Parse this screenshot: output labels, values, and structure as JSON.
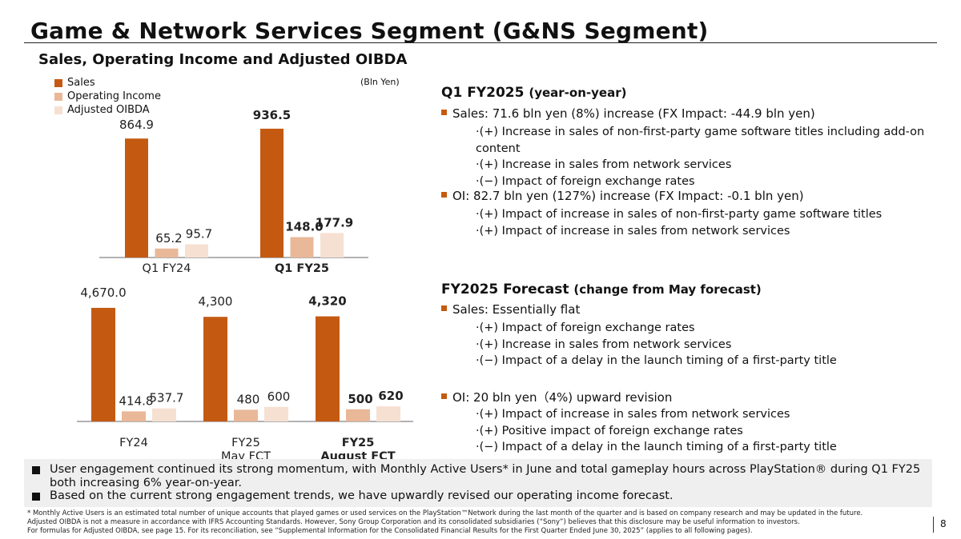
{
  "title": "Game & Network Services Segment (G&NS Segment)",
  "subtitle": "Sales, Operating Income and Adjusted OIBDA",
  "units": "(Bln Yen)",
  "legend": [
    {
      "label": "Sales",
      "color": "#c45a12"
    },
    {
      "label": "Operating Income",
      "color": "#e9b898"
    },
    {
      "label": "Adjusted OIBDA",
      "color": "#f6e0d2"
    }
  ],
  "chart_data": [
    {
      "type": "bar",
      "categories": [
        "Q1 FY24",
        "Q1 FY25"
      ],
      "category_lines": [
        [
          "Q1 FY24"
        ],
        [
          "Q1 FY25"
        ]
      ],
      "bold_categories": [
        false,
        true
      ],
      "series": [
        {
          "name": "Sales",
          "values": [
            864.9,
            936.5
          ],
          "labels": [
            "864.9",
            "936.5"
          ]
        },
        {
          "name": "Operating Income",
          "values": [
            65.2,
            148.0
          ],
          "labels": [
            "65.2",
            "148.0"
          ]
        },
        {
          "name": "Adjusted OIBDA",
          "values": [
            95.7,
            177.9
          ],
          "labels": [
            "95.7",
            "177.9"
          ]
        }
      ],
      "ylim": [
        0,
        1000
      ],
      "legend_position": "top-left"
    },
    {
      "type": "bar",
      "categories": [
        "FY24",
        "FY25 May FCT",
        "FY25 August FCT"
      ],
      "category_lines": [
        [
          "FY24"
        ],
        [
          "FY25",
          "May FCT"
        ],
        [
          "FY25",
          "August FCT"
        ]
      ],
      "bold_categories": [
        false,
        false,
        true
      ],
      "series": [
        {
          "name": "Sales",
          "values": [
            4670.0,
            4300,
            4320
          ],
          "labels": [
            "4,670.0",
            "4,300",
            "4,320"
          ]
        },
        {
          "name": "Operating Income",
          "values": [
            414.8,
            480,
            500
          ],
          "labels": [
            "414.8",
            "480",
            "500"
          ]
        },
        {
          "name": "Adjusted OIBDA",
          "values": [
            537.7,
            600,
            620
          ],
          "labels": [
            "537.7",
            "600",
            "620"
          ]
        }
      ],
      "ylim": [
        0,
        4800
      ]
    }
  ],
  "q1": {
    "heading": "Q1 FY2025",
    "heading_note": "(year-on-year)",
    "sales": "Sales: 71.6 bln yen (8%) increase (FX Impact: -44.9 bln yen)",
    "sales_points": [
      "·(+) Increase in sales of non-first-party game software titles including add-on content",
      "·(+) Increase in sales from network services",
      "·(−) Impact of foreign exchange rates"
    ],
    "oi": "OI: 82.7 bln yen (127%) increase (FX Impact: -0.1 bln yen)",
    "oi_points": [
      "·(+) Impact of increase in sales of non-first-party game software titles",
      "·(+) Impact of increase in sales from network services"
    ]
  },
  "forecast": {
    "heading": "FY2025 Forecast",
    "heading_note": "(change from May forecast)",
    "sales": "Sales: Essentially flat",
    "sales_points": [
      "·(+) Impact of foreign exchange rates",
      "·(+) Increase in sales from network services",
      "·(−) Impact of a delay in the launch timing of a first-party title"
    ],
    "oi": "OI: 20 bln yen（4%) upward revision",
    "oi_points": [
      "·(+) Impact of increase in sales from network services",
      "·(+) Positive impact of foreign exchange rates",
      "·(−) Impact of a delay in the launch timing of a first-party title"
    ]
  },
  "bottom_box": [
    "User engagement continued its strong momentum, with Monthly Active Users* in June and total gameplay hours across PlayStation® during Q1 FY25 both increasing 6% year-on-year.",
    "Based on the current strong engagement trends, we have upwardly revised our operating income forecast."
  ],
  "footnotes": [
    "* Monthly Active Users is an estimated total number of unique accounts that played games or used services on the PlayStation™Network during the last month of the quarter and is based on company research and may be updated in the future.",
    "Adjusted OIBDA is not a measure in accordance with IFRS Accounting Standards. However, Sony Group Corporation and its consolidated subsidiaries (“Sony”) believes that this disclosure may be useful information to investors.",
    "For formulas for Adjusted OIBDA, see page 15. For its reconciliation, see “Supplemental Information for the Consolidated Financial Results for the First Quarter Ended June 30, 2025” (applies to all following pages)."
  ],
  "page_number": "8"
}
